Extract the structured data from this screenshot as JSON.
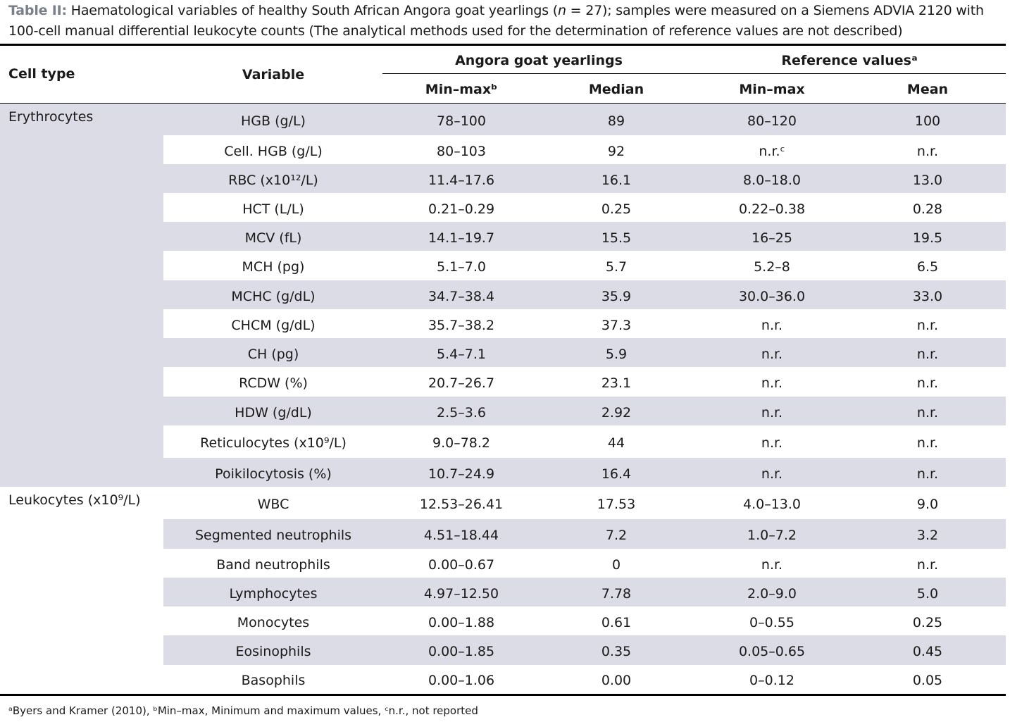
{
  "caption": {
    "label": "Table II:",
    "line1_before": "Haematological variables of healthy South African Angora goat yearlings (",
    "line1_italic": "n",
    "line1_after": " = 27); samples were measured on a Siemens ADVIA 2120 with",
    "line2": "100-cell manual differential leukocyte counts (The analytical methods used for the determination of reference values are not described)"
  },
  "table": {
    "header": {
      "cell_type": "Cell type",
      "variable": "Variable",
      "group1": "Angora goat yearlings",
      "group2": "Reference valuesᵃ",
      "columns": [
        "Min–maxᵇ",
        "Median",
        "Min–max",
        "Mean"
      ]
    },
    "groups": [
      {
        "cell_type": "Erythrocytes",
        "rows": [
          [
            "HGB (g/L)",
            "78–100",
            "89",
            "80–120",
            "100"
          ],
          [
            "Cell. HGB (g/L)",
            "80–103",
            "92",
            "n.r.ᶜ",
            "n.r."
          ],
          [
            "RBC (x10¹²/L)",
            "11.4–17.6",
            "16.1",
            "8.0–18.0",
            "13.0"
          ],
          [
            "HCT (L/L)",
            "0.21–0.29",
            "0.25",
            "0.22–0.38",
            "0.28"
          ],
          [
            "MCV (fL)",
            "14.1–19.7",
            "15.5",
            "16–25",
            "19.5"
          ],
          [
            "MCH (pg)",
            "5.1–7.0",
            "5.7",
            "5.2–8",
            "6.5"
          ],
          [
            "MCHC (g/dL)",
            "34.7–38.4",
            "35.9",
            "30.0–36.0",
            "33.0"
          ],
          [
            "CHCM (g/dL)",
            "35.7–38.2",
            "37.3",
            "n.r.",
            "n.r."
          ],
          [
            "CH (pg)",
            "5.4–7.1",
            "5.9",
            "n.r.",
            "n.r."
          ],
          [
            "RCDW (%)",
            "20.7–26.7",
            "23.1",
            "n.r.",
            "n.r."
          ],
          [
            "HDW (g/dL)",
            "2.5–3.6",
            "2.92",
            "n.r.",
            "n.r."
          ],
          [
            "Reticulocytes (x10⁹/L)",
            "9.0–78.2",
            "44",
            "n.r.",
            "n.r."
          ],
          [
            "Poikilocytosis (%)",
            "10.7–24.9",
            "16.4",
            "n.r.",
            "n.r."
          ]
        ]
      },
      {
        "cell_type": "Leukocytes (x10⁹/L)",
        "rows": [
          [
            "WBC",
            "12.53–26.41",
            "17.53",
            "4.0–13.0",
            "9.0"
          ],
          [
            "Segmented neutrophils",
            "4.51–18.44",
            "7.2",
            "1.0–7.2",
            "3.2"
          ],
          [
            "Band neutrophils",
            "0.00–0.67",
            "0",
            "n.r.",
            "n.r."
          ],
          [
            "Lymphocytes",
            "4.97–12.50",
            "7.78",
            "2.0–9.0",
            "5.0"
          ],
          [
            "Monocytes",
            "0.00–1.88",
            "0.61",
            "0–0.55",
            "0.25"
          ],
          [
            "Eosinophils",
            "0.00–1.85",
            "0.35",
            "0.05–0.65",
            "0.45"
          ],
          [
            "Basophils",
            "0.00–1.06",
            "0.00",
            "0–0.12",
            "0.05"
          ]
        ]
      }
    ]
  },
  "footnote": "ᵃByers and Kramer (2010), ᵇMin–max, Minimum and maximum values, ᶜn.r., not reported"
}
